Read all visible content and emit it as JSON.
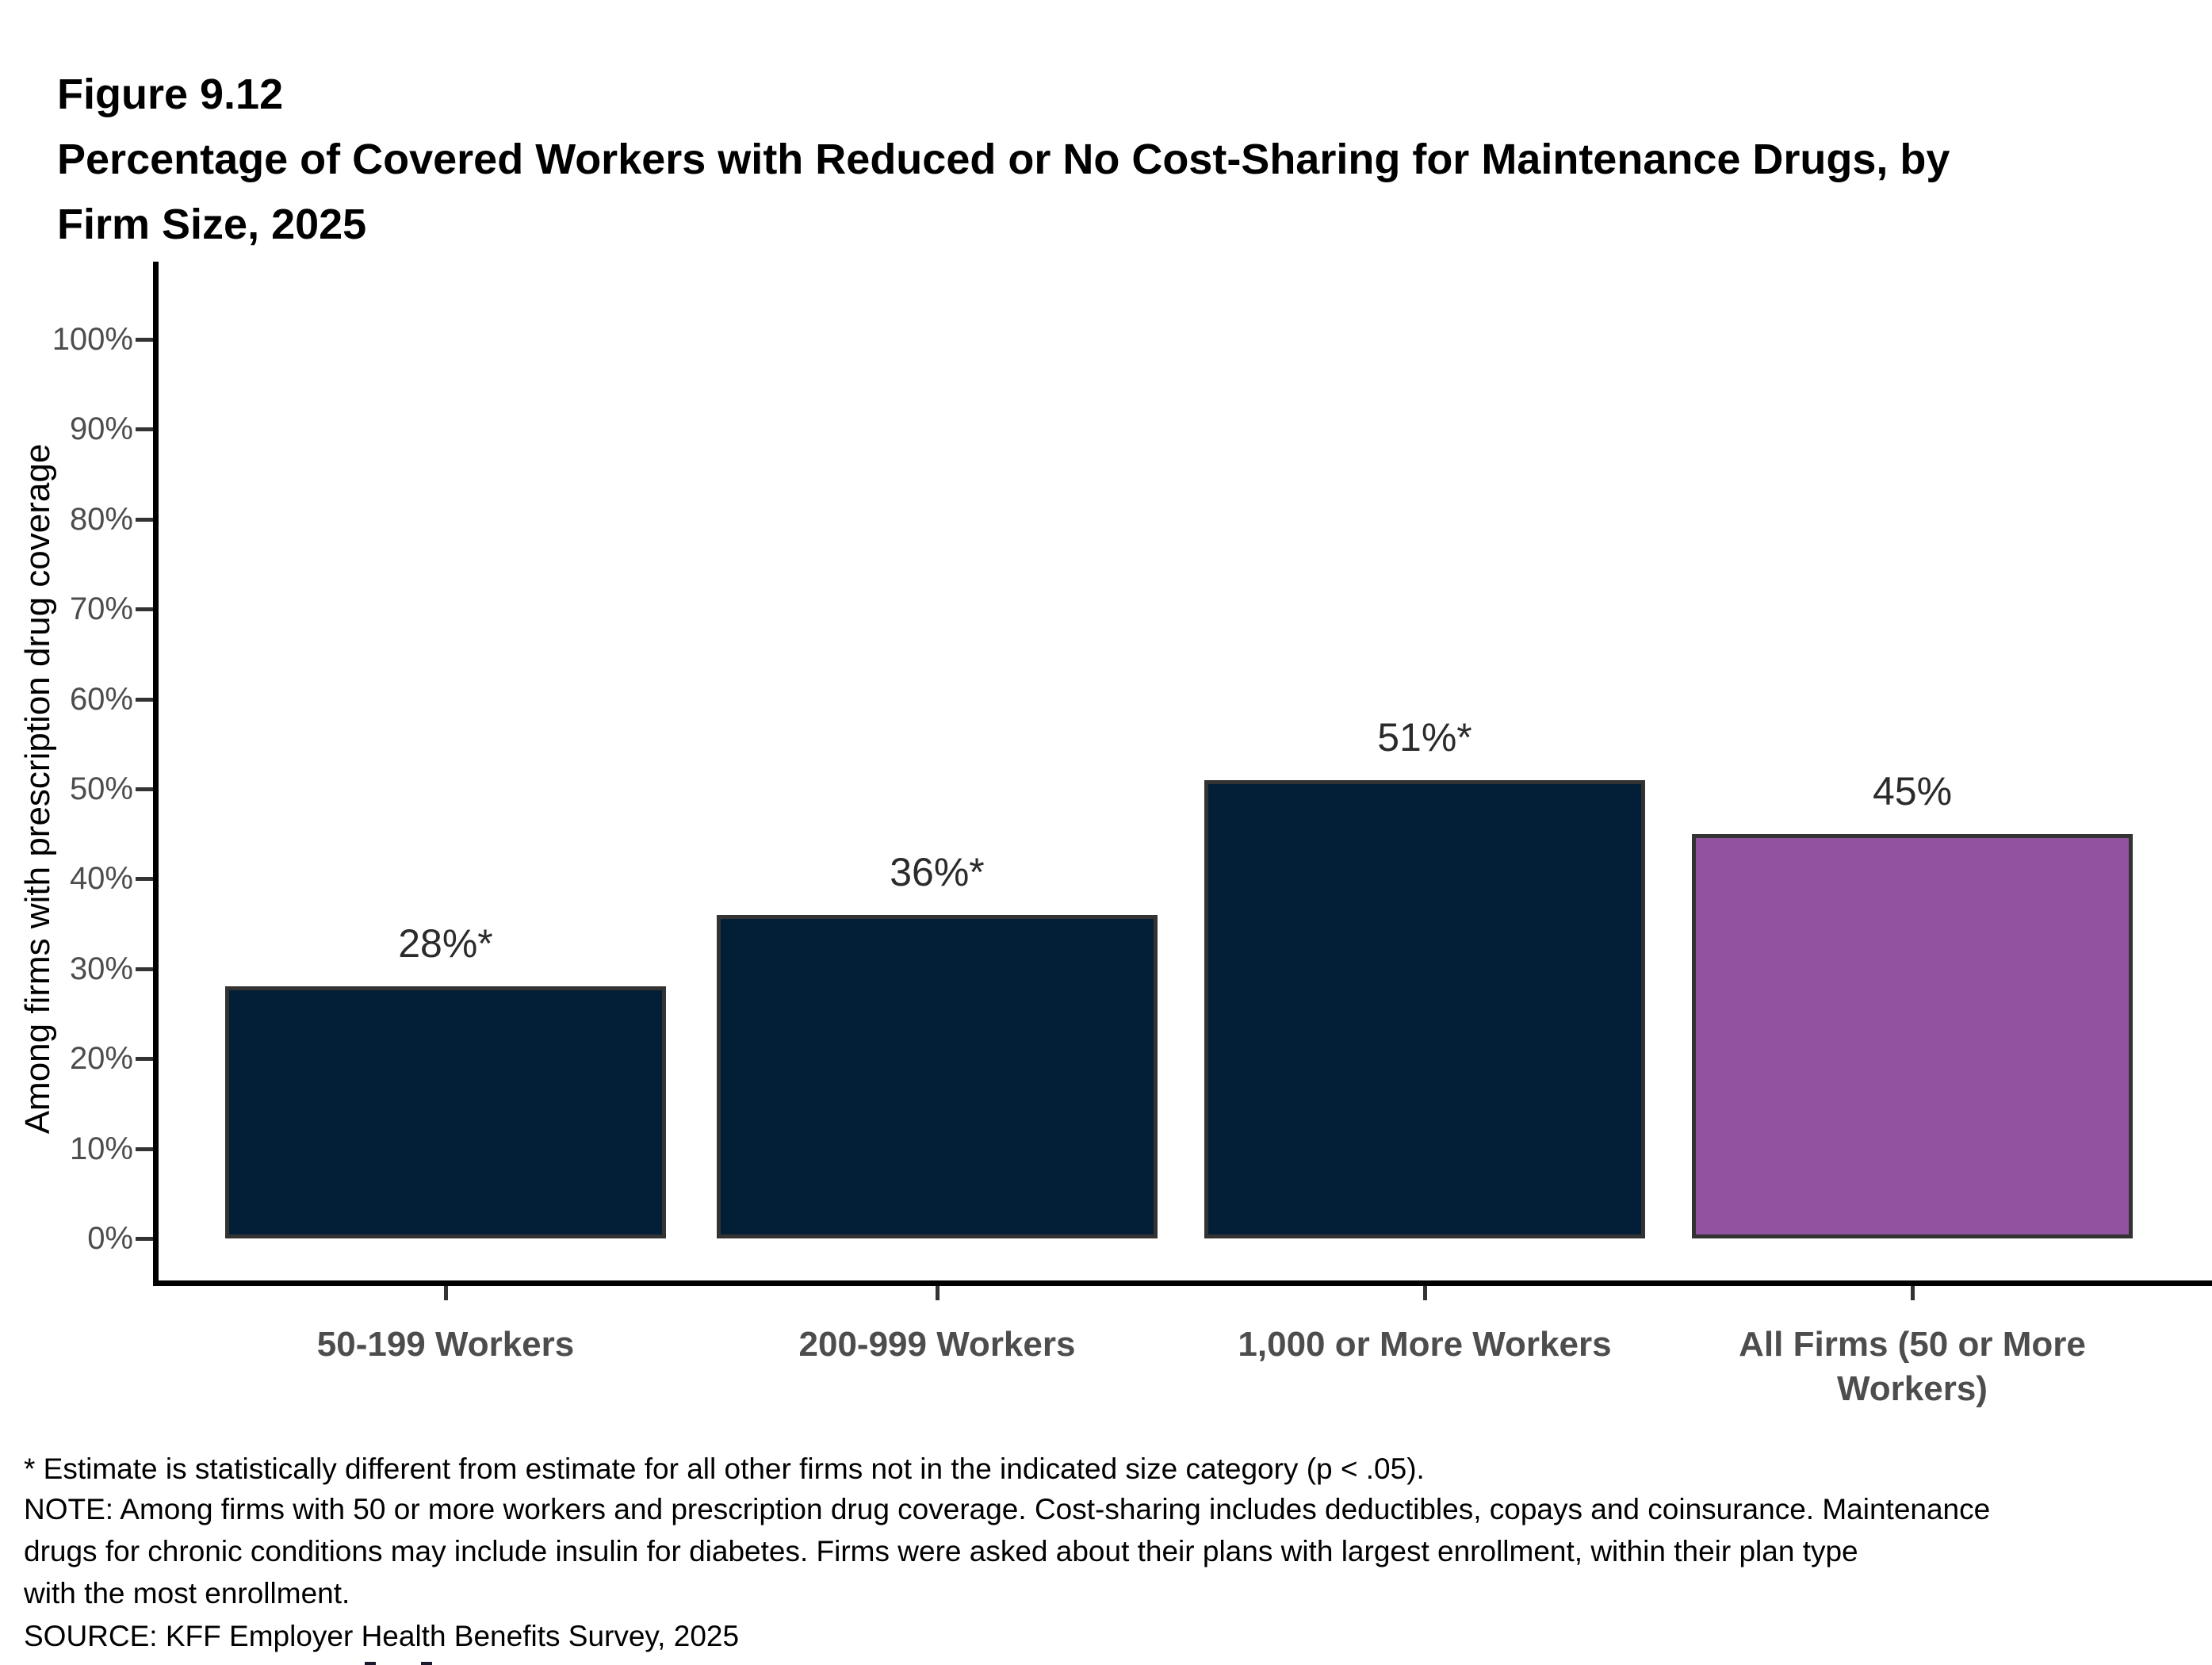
{
  "figure": {
    "label": "Figure 9.12",
    "title_line1": "Percentage of Covered Workers with Reduced or No Cost-Sharing for Maintenance Drugs, by",
    "title_line2": "Firm Size, 2025"
  },
  "chart_data": {
    "type": "bar",
    "title": "Percentage of Covered Workers with Reduced or No Cost-Sharing for Maintenance Drugs, by Firm Size, 2025",
    "categories": [
      "50-199 Workers",
      "200-999 Workers",
      "1,000 or More Workers",
      "All Firms (50 or More Workers)"
    ],
    "values": [
      28,
      36,
      51,
      45
    ],
    "value_labels": [
      "28%*",
      "36%*",
      "51%*",
      "45%"
    ],
    "bar_colors": [
      "#021f37",
      "#021f37",
      "#021f37",
      "#9352a0"
    ],
    "bar_border_color": "#333333",
    "xlabel": "",
    "ylabel": "Among firms with prescription drug coverage",
    "ylim": [
      0,
      100
    ],
    "y_tick_step": 10,
    "y_tick_labels": [
      "0%",
      "10%",
      "20%",
      "30%",
      "40%",
      "50%",
      "60%",
      "70%",
      "80%",
      "90%",
      "100%"
    ],
    "grid": false,
    "legend_position": "none"
  },
  "footnotes": {
    "star": "* Estimate is statistically different from estimate for all other firms not in the indicated size category (p < .05).",
    "note1": "NOTE: Among firms with 50 or more workers and prescription drug coverage. Cost-sharing includes deductibles, copays and coinsurance. Maintenance",
    "note2": "drugs for chronic conditions may include insulin for diabetes. Firms were asked about their plans with largest enrollment, within their plan type",
    "note3": "with the most enrollment.",
    "source": "SOURCE: KFF Employer Health Benefits Survey, 2025"
  }
}
